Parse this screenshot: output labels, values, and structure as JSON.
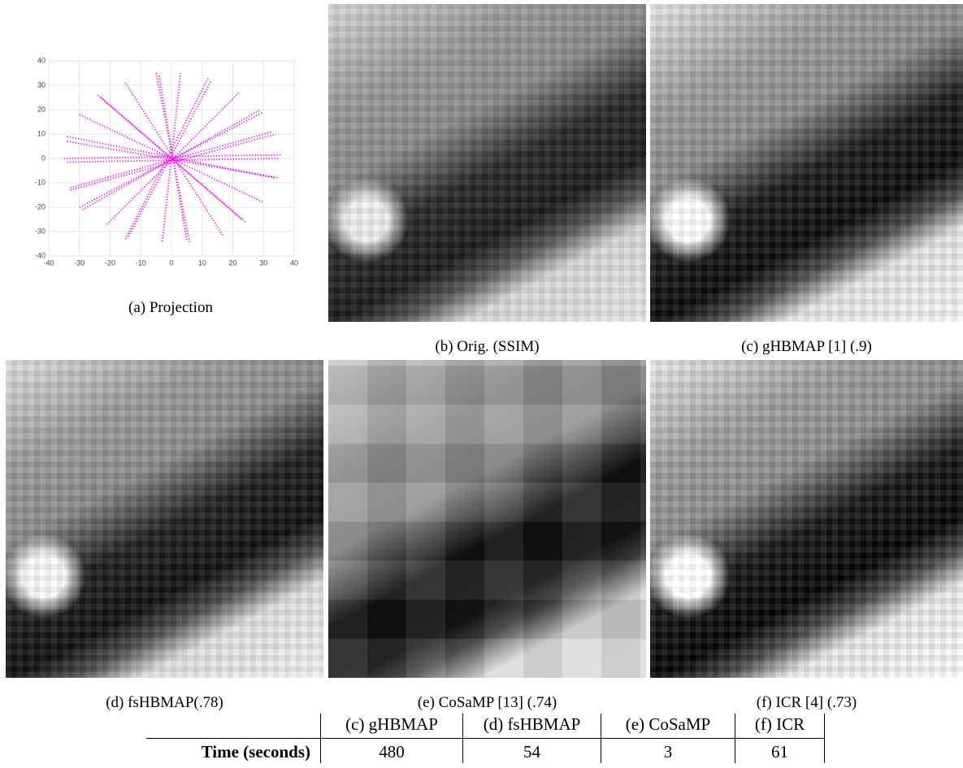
{
  "chart_data": {
    "type": "line",
    "color": "#ff00ff",
    "grid": true,
    "xlim": [
      -40,
      40
    ],
    "ylim": [
      -40,
      40
    ],
    "xticks": [
      -40,
      -30,
      -20,
      -10,
      0,
      10,
      20,
      30,
      40
    ],
    "yticks": [
      -40,
      -30,
      -20,
      -10,
      0,
      10,
      20,
      30,
      40
    ],
    "series": [
      {
        "x": [
          -35,
          36
        ],
        "values": [
          0,
          1.5
        ]
      },
      {
        "x": [
          -34,
          35
        ],
        "values": [
          -1.5,
          0
        ]
      },
      {
        "x": [
          -34,
          34
        ],
        "values": [
          9,
          -8
        ]
      },
      {
        "x": [
          -34,
          35
        ],
        "values": [
          7,
          -8
        ]
      },
      {
        "x": [
          -30,
          30
        ],
        "values": [
          18,
          -18
        ]
      },
      {
        "x": [
          -33,
          33
        ],
        "values": [
          -12,
          11
        ]
      },
      {
        "x": [
          -33,
          34
        ],
        "values": [
          -13,
          10
        ]
      },
      {
        "x": [
          -30,
          30
        ],
        "values": [
          -20,
          19
        ]
      },
      {
        "x": [
          -29,
          29
        ],
        "values": [
          -21,
          20
        ]
      },
      {
        "x": [
          -24,
          24
        ],
        "values": [
          26,
          -26
        ]
      },
      {
        "x": [
          -23,
          23
        ],
        "values": [
          25,
          -25
        ]
      },
      {
        "x": [
          -21,
          22
        ],
        "values": [
          -27,
          27
        ]
      },
      {
        "x": [
          -15,
          17
        ],
        "values": [
          31,
          -32
        ]
      },
      {
        "x": [
          -15,
          12
        ],
        "values": [
          -33,
          33
        ]
      },
      {
        "x": [
          -14,
          13
        ],
        "values": [
          -32,
          32
        ]
      },
      {
        "x": [
          -5,
          6
        ],
        "values": [
          35,
          -35
        ]
      },
      {
        "x": [
          -4,
          5
        ],
        "values": [
          34,
          -34
        ]
      },
      {
        "x": [
          -3,
          3
        ],
        "values": [
          -34,
          35
        ]
      }
    ]
  },
  "captions": [
    "(a) Projection",
    "(b) Orig. (SSIM)",
    "(c) gHBMAP [1] (.9)",
    "(d) fsHBMAP(.78)",
    "(e) CoSaMP [13] (.74)",
    "(f) ICR [4] (.73)"
  ],
  "table": {
    "columns": [
      "(c) gHBMAP",
      "(d) fsHBMAP",
      "(e) CoSaMP",
      "(f) ICR"
    ],
    "row_label": "Time (seconds)",
    "values": [
      480,
      54,
      3,
      61
    ]
  }
}
